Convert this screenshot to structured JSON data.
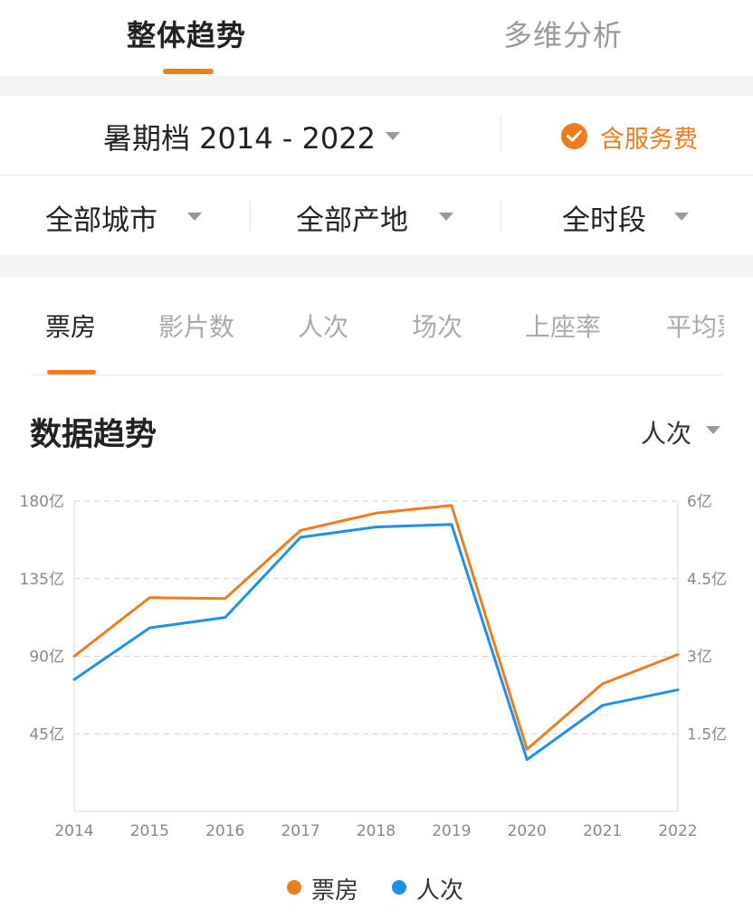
{
  "top_tabs": [
    {
      "label": "整体趋势",
      "active": true
    },
    {
      "label": "多维分析",
      "active": false
    }
  ],
  "filters": {
    "season_range": "暑期档 2014 - 2022",
    "service_fee_label": "含服务费",
    "service_fee_checked": true,
    "city": "全部城市",
    "origin": "全部产地",
    "time_slot": "全时段"
  },
  "metric_tabs": [
    {
      "label": "票房",
      "active": true
    },
    {
      "label": "影片数",
      "active": false
    },
    {
      "label": "人次",
      "active": false
    },
    {
      "label": "场次",
      "active": false
    },
    {
      "label": "上座率",
      "active": false
    },
    {
      "label": "平均票",
      "active": false
    }
  ],
  "section": {
    "title": "数据趋势",
    "unit_select": "人次"
  },
  "colors": {
    "accent": "#f07c1e",
    "series_box_office": "#f07c1e",
    "series_admissions": "#1e90f0"
  },
  "chart_data": {
    "type": "line",
    "x": [
      "2014",
      "2015",
      "2016",
      "2017",
      "2018",
      "2019",
      "2020",
      "2021",
      "2022"
    ],
    "series": [
      {
        "name": "票房",
        "axis": "left",
        "color": "#f07c1e",
        "values": [
          90,
          124,
          123.5,
          163,
          173,
          177.5,
          36,
          74,
          91
        ]
      },
      {
        "name": "人次",
        "axis": "right",
        "color": "#1e90f0",
        "values": [
          2.55,
          3.55,
          3.75,
          5.3,
          5.5,
          5.55,
          1.0,
          2.05,
          2.35
        ]
      }
    ],
    "y_left": {
      "ticks": [
        "45亿",
        "90亿",
        "135亿",
        "180亿"
      ],
      "tick_values": [
        45,
        90,
        135,
        180
      ],
      "range": [
        0,
        180
      ]
    },
    "y_right": {
      "ticks": [
        "1.5亿",
        "3亿",
        "4.5亿",
        "6亿"
      ],
      "tick_values": [
        1.5,
        3,
        4.5,
        6
      ],
      "range": [
        0,
        6
      ]
    },
    "grid": true,
    "legend": [
      "票房",
      "人次"
    ],
    "legend_position": "bottom"
  }
}
